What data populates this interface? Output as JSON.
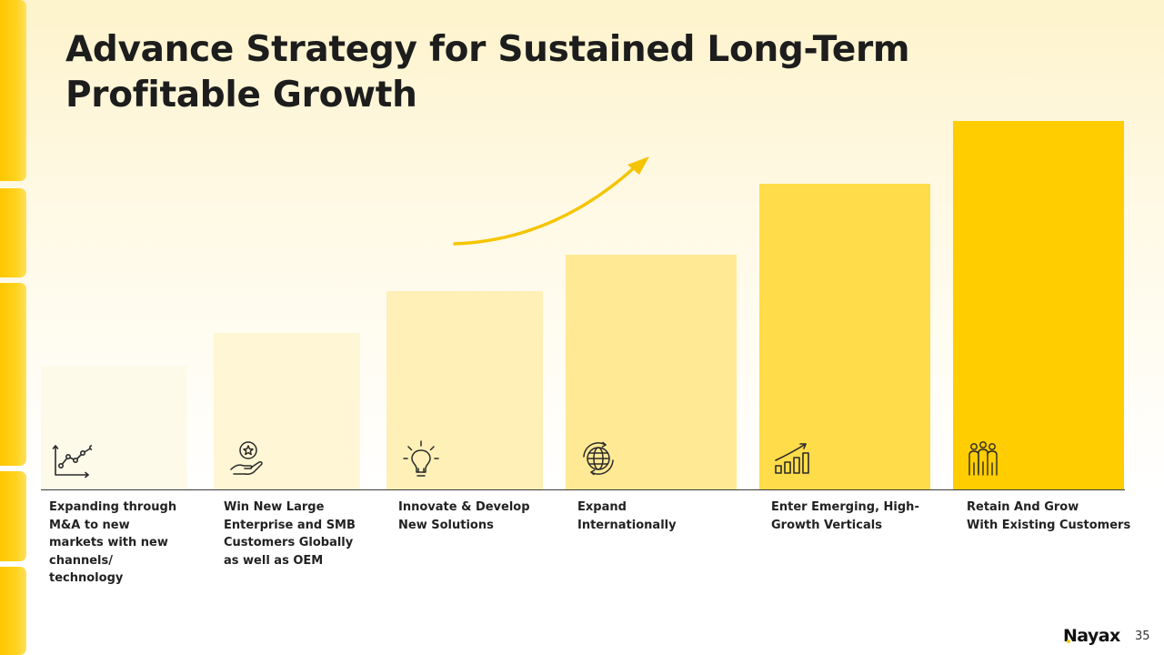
{
  "slide": {
    "title": "Advance Strategy for Sustained Long-Term Profitable Growth",
    "page_number": "35",
    "logo_text": "Nayax"
  },
  "colors": {
    "accent": "#ffc600",
    "text": "#1d1d1d"
  },
  "steps": [
    {
      "label": "Expanding through\nM&A to new\nmarkets with new\nchannels/\ntechnology",
      "icon": "line-chart-icon",
      "color": "#fefaea"
    },
    {
      "label": "Win New Large\nEnterprise and SMB\nCustomers Globally\nas well as OEM",
      "icon": "hand-star-icon",
      "color": "#fef6d5"
    },
    {
      "label": "Innovate & Develop\nNew Solutions",
      "icon": "lightbulb-icon",
      "color": "#fef0b6"
    },
    {
      "label": "Expand\nInternationally",
      "icon": "globe-icon",
      "color": "#ffe994"
    },
    {
      "label": "Enter Emerging, High-\nGrowth Verticals",
      "icon": "growth-chart-icon",
      "color": "#ffdc4a"
    },
    {
      "label": "Retain And Grow\nWith Existing Customers",
      "icon": "people-group-icon",
      "color": "#ffcd00"
    }
  ]
}
